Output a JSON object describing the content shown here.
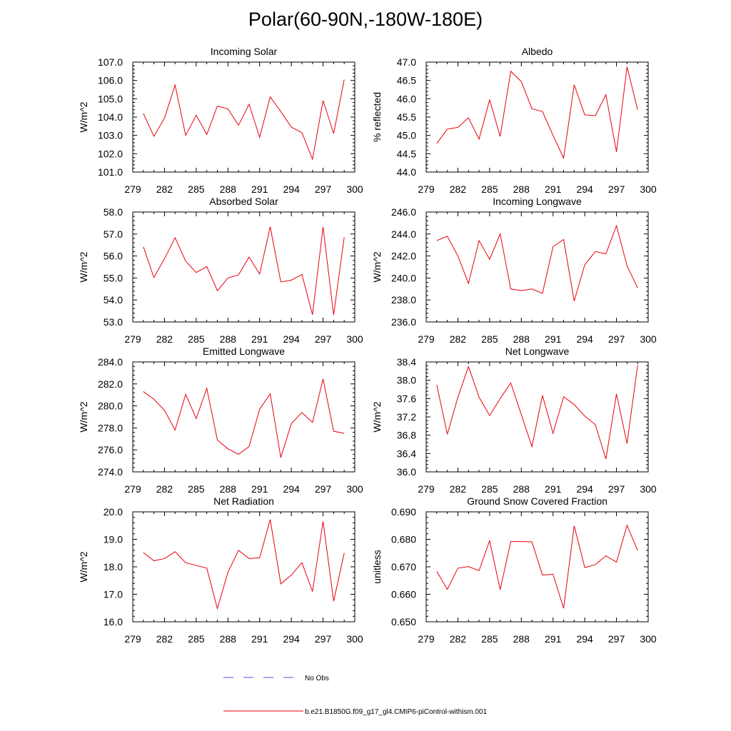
{
  "title": "Polar(60-90N,-180W-180E)",
  "legend": {
    "obs_label": "No Obs",
    "obs_color": "#4d4dcc",
    "model_label": "b.e21.B1850G.f09_g17_gl4.CMIP6-piControl-withism.001",
    "model_color": "#e8000b"
  },
  "chart_data": [
    {
      "type": "line",
      "title": "Incoming Solar",
      "ylabel": "W/m^2",
      "xlim": [
        279,
        300
      ],
      "ylim": [
        101,
        107
      ],
      "xticks": [
        279,
        282,
        285,
        288,
        291,
        294,
        297,
        300
      ],
      "yticks": [
        101,
        102,
        103,
        104,
        105,
        106,
        107
      ],
      "ytick_labels": [
        "101.0",
        "102.0",
        "103.0",
        "104.0",
        "105.0",
        "106.0",
        "107.0"
      ],
      "x": [
        280,
        281,
        282,
        283,
        284,
        285,
        286,
        287,
        288,
        289,
        290,
        291,
        292,
        293,
        294,
        295,
        296,
        297,
        298,
        299
      ],
      "series": [
        {
          "name": "b.e21.B1850G.f09_g17_gl4.CMIP6-piControl-withism.001",
          "values": [
            104.2,
            102.95,
            103.95,
            105.75,
            103.0,
            104.1,
            103.05,
            104.6,
            104.45,
            103.55,
            104.7,
            102.9,
            105.1,
            104.3,
            103.45,
            103.15,
            101.7,
            104.9,
            103.1,
            106.05
          ]
        }
      ]
    },
    {
      "type": "line",
      "title": "Albedo",
      "ylabel": "% reflected",
      "xlim": [
        279,
        300
      ],
      "ylim": [
        44,
        47
      ],
      "xticks": [
        279,
        282,
        285,
        288,
        291,
        294,
        297,
        300
      ],
      "yticks": [
        44,
        44.5,
        45,
        45.5,
        46,
        46.5,
        47
      ],
      "ytick_labels": [
        "44.0",
        "44.5",
        "45.0",
        "45.5",
        "46.0",
        "46.5",
        "47.0"
      ],
      "x": [
        280,
        281,
        282,
        283,
        284,
        285,
        286,
        287,
        288,
        289,
        290,
        291,
        292,
        293,
        294,
        295,
        296,
        297,
        298,
        299
      ],
      "series": [
        {
          "name": "b.e21.B1850G.f09_g17_gl4.CMIP6-piControl-withism.001",
          "values": [
            44.78,
            45.17,
            45.22,
            45.48,
            44.9,
            45.97,
            44.97,
            46.75,
            46.47,
            45.73,
            45.65,
            45.0,
            44.38,
            46.38,
            45.56,
            45.54,
            46.11,
            44.55,
            46.87,
            45.7
          ]
        }
      ]
    },
    {
      "type": "line",
      "title": "Absorbed Solar",
      "ylabel": "W/m^2",
      "xlim": [
        279,
        300
      ],
      "ylim": [
        53,
        58
      ],
      "xticks": [
        279,
        282,
        285,
        288,
        291,
        294,
        297,
        300
      ],
      "yticks": [
        53,
        54,
        55,
        56,
        57,
        58
      ],
      "ytick_labels": [
        "53.0",
        "54.0",
        "55.0",
        "56.0",
        "57.0",
        "58.0"
      ],
      "x": [
        280,
        281,
        282,
        283,
        284,
        285,
        286,
        287,
        288,
        289,
        290,
        291,
        292,
        293,
        294,
        295,
        296,
        297,
        298,
        299
      ],
      "series": [
        {
          "name": "b.e21.B1850G.f09_g17_gl4.CMIP6-piControl-withism.001",
          "values": [
            56.42,
            55.02,
            55.88,
            56.83,
            55.77,
            55.25,
            55.52,
            54.42,
            55.0,
            55.14,
            55.95,
            55.18,
            57.33,
            54.82,
            54.9,
            55.16,
            53.33,
            57.32,
            53.32,
            56.85
          ]
        }
      ]
    },
    {
      "type": "line",
      "title": "Incoming Longwave",
      "ylabel": "W/m^2",
      "xlim": [
        279,
        300
      ],
      "ylim": [
        236,
        246
      ],
      "xticks": [
        279,
        282,
        285,
        288,
        291,
        294,
        297,
        300
      ],
      "yticks": [
        236,
        238,
        240,
        242,
        244,
        246
      ],
      "ytick_labels": [
        "236.0",
        "238.0",
        "240.0",
        "242.0",
        "244.0",
        "246.0"
      ],
      "x": [
        280,
        281,
        282,
        283,
        284,
        285,
        286,
        287,
        288,
        289,
        290,
        291,
        292,
        293,
        294,
        295,
        296,
        297,
        298,
        299
      ],
      "series": [
        {
          "name": "b.e21.B1850G.f09_g17_gl4.CMIP6-piControl-withism.001",
          "values": [
            243.4,
            243.8,
            242.0,
            239.5,
            243.4,
            241.7,
            244.0,
            239.0,
            238.85,
            239.0,
            238.6,
            242.85,
            243.5,
            237.9,
            241.2,
            242.4,
            242.2,
            244.75,
            241.1,
            239.1
          ]
        }
      ]
    },
    {
      "type": "line",
      "title": "Emitted Longwave",
      "ylabel": "W/m^2",
      "xlim": [
        279,
        300
      ],
      "ylim": [
        274,
        284
      ],
      "xticks": [
        279,
        282,
        285,
        288,
        291,
        294,
        297,
        300
      ],
      "yticks": [
        274,
        276,
        278,
        280,
        282,
        284
      ],
      "ytick_labels": [
        "274.0",
        "276.0",
        "278.0",
        "280.0",
        "282.0",
        "284.0"
      ],
      "x": [
        280,
        281,
        282,
        283,
        284,
        285,
        286,
        287,
        288,
        289,
        290,
        291,
        292,
        293,
        294,
        295,
        296,
        297,
        298,
        299
      ],
      "series": [
        {
          "name": "b.e21.B1850G.f09_g17_gl4.CMIP6-piControl-withism.001",
          "values": [
            281.3,
            280.6,
            279.6,
            277.8,
            281.05,
            278.85,
            281.6,
            276.9,
            276.1,
            275.6,
            276.3,
            279.7,
            281.1,
            275.3,
            278.4,
            279.4,
            278.5,
            282.45,
            277.7,
            277.5
          ]
        }
      ]
    },
    {
      "type": "line",
      "title": "Net Longwave",
      "ylabel": "W/m^2",
      "xlim": [
        279,
        300
      ],
      "ylim": [
        36,
        38.4
      ],
      "xticks": [
        279,
        282,
        285,
        288,
        291,
        294,
        297,
        300
      ],
      "yticks": [
        36,
        36.4,
        36.8,
        37.2,
        37.6,
        38,
        38.4
      ],
      "ytick_labels": [
        "36.0",
        "36.4",
        "36.8",
        "37.2",
        "37.6",
        "38.0",
        "38.4"
      ],
      "x": [
        280,
        281,
        282,
        283,
        284,
        285,
        286,
        287,
        288,
        289,
        290,
        291,
        292,
        293,
        294,
        295,
        296,
        297,
        298,
        299
      ],
      "series": [
        {
          "name": "b.e21.B1850G.f09_g17_gl4.CMIP6-piControl-withism.001",
          "values": [
            37.9,
            36.82,
            37.63,
            38.3,
            37.63,
            37.23,
            37.6,
            37.94,
            37.25,
            36.55,
            37.67,
            36.84,
            37.64,
            37.47,
            37.22,
            37.03,
            36.28,
            37.7,
            36.62,
            38.33
          ]
        }
      ]
    },
    {
      "type": "line",
      "title": "Net Radiation",
      "ylabel": "W/m^2",
      "xlim": [
        279,
        300
      ],
      "ylim": [
        16,
        20
      ],
      "xticks": [
        279,
        282,
        285,
        288,
        291,
        294,
        297,
        300
      ],
      "yticks": [
        16,
        17,
        18,
        19,
        20
      ],
      "ytick_labels": [
        "16.0",
        "17.0",
        "18.0",
        "19.0",
        "20.0"
      ],
      "x": [
        280,
        281,
        282,
        283,
        284,
        285,
        286,
        287,
        288,
        289,
        290,
        291,
        292,
        293,
        294,
        295,
        296,
        297,
        298,
        299
      ],
      "series": [
        {
          "name": "b.e21.B1850G.f09_g17_gl4.CMIP6-piControl-withism.001",
          "values": [
            18.52,
            18.22,
            18.3,
            18.55,
            18.15,
            18.05,
            17.95,
            16.48,
            17.8,
            18.6,
            18.3,
            18.33,
            19.72,
            17.38,
            17.7,
            18.15,
            17.1,
            19.65,
            16.75,
            18.5
          ]
        }
      ]
    },
    {
      "type": "line",
      "title": "Ground Snow Covered Fraction",
      "ylabel": "unitless",
      "xlim": [
        279,
        300
      ],
      "ylim": [
        0.65,
        0.69
      ],
      "xticks": [
        279,
        282,
        285,
        288,
        291,
        294,
        297,
        300
      ],
      "yticks": [
        0.65,
        0.66,
        0.67,
        0.68,
        0.69
      ],
      "ytick_labels": [
        "0.650",
        "0.660",
        "0.670",
        "0.680",
        "0.690"
      ],
      "x": [
        280,
        281,
        282,
        283,
        284,
        285,
        286,
        287,
        288,
        289,
        290,
        291,
        292,
        293,
        294,
        295,
        296,
        297,
        298,
        299
      ],
      "series": [
        {
          "name": "b.e21.B1850G.f09_g17_gl4.CMIP6-piControl-withism.001",
          "values": [
            0.6683,
            0.6618,
            0.6695,
            0.6701,
            0.6686,
            0.6795,
            0.6617,
            0.6792,
            0.6792,
            0.6791,
            0.667,
            0.6673,
            0.6549,
            0.6849,
            0.6697,
            0.6708,
            0.674,
            0.6717,
            0.6851,
            0.676
          ]
        }
      ]
    }
  ]
}
